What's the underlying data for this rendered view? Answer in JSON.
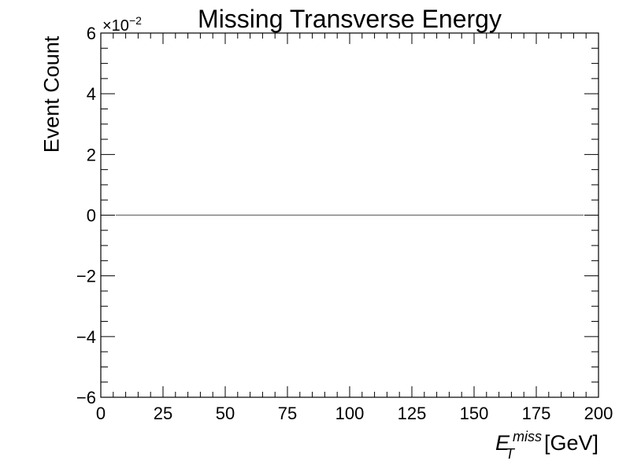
{
  "chart_data": {
    "type": "line",
    "title": "Missing Transverse Energy",
    "xlabel_symbol": "E",
    "xlabel_sup": "miss",
    "xlabel_sub": "T",
    "xlabel_unit": "[GeV]",
    "ylabel": "Event Count",
    "y_multiplier_base": "×10",
    "y_multiplier_exp": "−2",
    "xlim": [
      0,
      200
    ],
    "ylim": [
      -6,
      6
    ],
    "x_ticks": [
      0,
      25,
      50,
      75,
      100,
      125,
      150,
      175,
      200
    ],
    "x_tick_labels": [
      "0",
      "25",
      "50",
      "75",
      "100",
      "125",
      "150",
      "175",
      "200"
    ],
    "y_ticks": [
      -6,
      -4,
      -2,
      0,
      2,
      4,
      6
    ],
    "y_tick_labels": [
      "−6",
      "−4",
      "−2",
      "0",
      "2",
      "4",
      "6"
    ],
    "grid": false,
    "series": [
      {
        "x": [
          6,
          194
        ],
        "y": [
          0,
          0
        ],
        "color": "#808080"
      }
    ]
  }
}
